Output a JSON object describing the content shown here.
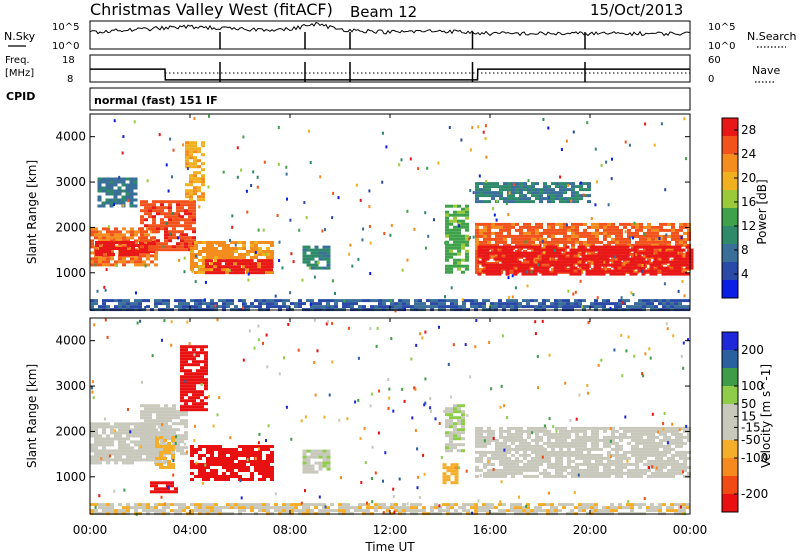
{
  "header": {
    "station": "Christmas Valley West (fitACF)",
    "beam": "Beam 12",
    "date": "15/Oct/2013"
  },
  "strip_labels": {
    "nsky": "N.Sky",
    "nsky_ticks": [
      "10^5",
      "10^0"
    ],
    "nsearch": "N.Search",
    "freq_line1": "Freq.",
    "freq_line2": "[MHz]",
    "freq_ticks": [
      "18",
      "8"
    ],
    "nave_ticks": [
      "60",
      "0"
    ],
    "nave": "Nave",
    "cpid": "CPID",
    "mode": "normal (fast) 151 IF"
  },
  "axes": {
    "xlabel": "Time UT",
    "ylabel": "Slant Range [km]",
    "x_ticks": [
      "00:00",
      "04:00",
      "08:00",
      "12:00",
      "16:00",
      "20:00",
      "00:00"
    ],
    "y_ticks": [
      "1000",
      "2000",
      "3000",
      "4000"
    ]
  },
  "colors": {
    "power": [
      "#0a1ee6",
      "#2b4aa8",
      "#3a6f9a",
      "#2f8a6a",
      "#3fa24a",
      "#9ac93a",
      "#f0b020",
      "#f58c1e",
      "#f2531c",
      "#e81818"
    ],
    "velocity": [
      "#e81010",
      "#f24a14",
      "#f58a1e",
      "#f4ae2a",
      "#c8c8bc",
      "#c8c8bc",
      "#8ecc4a",
      "#3e9c46",
      "#2a5fa0",
      "#1e28d8"
    ]
  },
  "chart_data": [
    {
      "type": "line",
      "title": "Christmas Valley West (fitACF)",
      "series": [
        {
          "name": "N.Sky",
          "x": [
            0,
            2,
            4,
            5,
            6,
            8,
            9,
            10,
            12,
            14,
            15,
            16,
            18,
            20,
            22,
            24
          ],
          "y": [
            60,
            70,
            80,
            75,
            70,
            70,
            90,
            70,
            60,
            65,
            60,
            55,
            55,
            55,
            55,
            55
          ]
        },
        {
          "name": "Freq.",
          "x": [
            0,
            3,
            3.01,
            15.5,
            15.51,
            24
          ],
          "y": [
            15,
            15,
            11,
            11,
            15,
            15
          ]
        }
      ]
    },
    {
      "type": "heatmap",
      "panel": "power",
      "xlabel": "Time UT",
      "ylabel": "Slant Range [km]",
      "xlim": [
        0,
        24
      ],
      "ylim": [
        180,
        4500
      ],
      "colorbar": {
        "label": "Power [dB]",
        "ticks": [
          4,
          8,
          12,
          16,
          20,
          24,
          28
        ],
        "range": [
          0,
          30
        ]
      },
      "regions": [
        {
          "t0": 0.0,
          "t1": 2.6,
          "r0": 1200,
          "r1": 2000,
          "value": 24
        },
        {
          "t0": 0.2,
          "t1": 2.5,
          "r0": 1400,
          "r1": 1700,
          "value": 29
        },
        {
          "t0": 0.3,
          "t1": 1.8,
          "r0": 2500,
          "r1": 3100,
          "value": 8
        },
        {
          "t0": 2.0,
          "t1": 4.2,
          "r0": 1500,
          "r1": 2600,
          "value": 26
        },
        {
          "t0": 3.8,
          "t1": 4.6,
          "r0": 2600,
          "r1": 3900,
          "value": 20
        },
        {
          "t0": 4.0,
          "t1": 7.3,
          "r0": 1000,
          "r1": 1700,
          "value": 22
        },
        {
          "t0": 4.6,
          "t1": 7.2,
          "r0": 1000,
          "r1": 1300,
          "value": 29
        },
        {
          "t0": 8.5,
          "t1": 9.6,
          "r0": 1100,
          "r1": 1600,
          "value": 10
        },
        {
          "t0": 14.2,
          "t1": 15.1,
          "r0": 1000,
          "r1": 2500,
          "value": 14
        },
        {
          "t0": 15.4,
          "t1": 24.0,
          "r0": 1000,
          "r1": 2100,
          "value": 25
        },
        {
          "t0": 15.5,
          "t1": 24.0,
          "r0": 1000,
          "r1": 1600,
          "value": 29
        },
        {
          "t0": 15.4,
          "t1": 20.0,
          "r0": 2600,
          "r1": 3000,
          "value": 9
        },
        {
          "t0": 0.0,
          "t1": 24.0,
          "r0": 200,
          "r1": 420,
          "value": 6
        }
      ]
    },
    {
      "type": "heatmap",
      "panel": "velocity",
      "xlabel": "Time UT",
      "ylabel": "Slant Range [km]",
      "xlim": [
        0,
        24
      ],
      "ylim": [
        180,
        4500
      ],
      "colorbar": {
        "label": "Velocity [m s^-1]",
        "ticks": [
          200,
          100,
          50,
          15,
          -15,
          -50,
          -100,
          -200
        ],
        "range": [
          -250,
          250
        ]
      },
      "regions": [
        {
          "t0": 0.0,
          "t1": 3.0,
          "r0": 1300,
          "r1": 2200,
          "value": 0
        },
        {
          "t0": 2.0,
          "t1": 3.8,
          "r0": 1500,
          "r1": 2600,
          "value": 0
        },
        {
          "t0": 2.6,
          "t1": 3.3,
          "r0": 1200,
          "r1": 1900,
          "value": -70
        },
        {
          "t0": 3.6,
          "t1": 4.6,
          "r0": 2500,
          "r1": 3900,
          "value": -230
        },
        {
          "t0": 4.0,
          "t1": 7.3,
          "r0": 950,
          "r1": 1700,
          "value": -230
        },
        {
          "t0": 2.4,
          "t1": 3.5,
          "r0": 650,
          "r1": 900,
          "value": -230
        },
        {
          "t0": 8.5,
          "t1": 9.6,
          "r0": 1100,
          "r1": 1600,
          "value": 30
        },
        {
          "t0": 14.2,
          "t1": 15.0,
          "r0": 1600,
          "r1": 2600,
          "value": 40
        },
        {
          "t0": 14.1,
          "t1": 14.7,
          "r0": 900,
          "r1": 1300,
          "value": -80
        },
        {
          "t0": 15.4,
          "t1": 24.0,
          "r0": 1000,
          "r1": 2100,
          "value": 0
        },
        {
          "t0": 0.0,
          "t1": 24.0,
          "r0": 200,
          "r1": 420,
          "value": -40
        }
      ]
    }
  ]
}
